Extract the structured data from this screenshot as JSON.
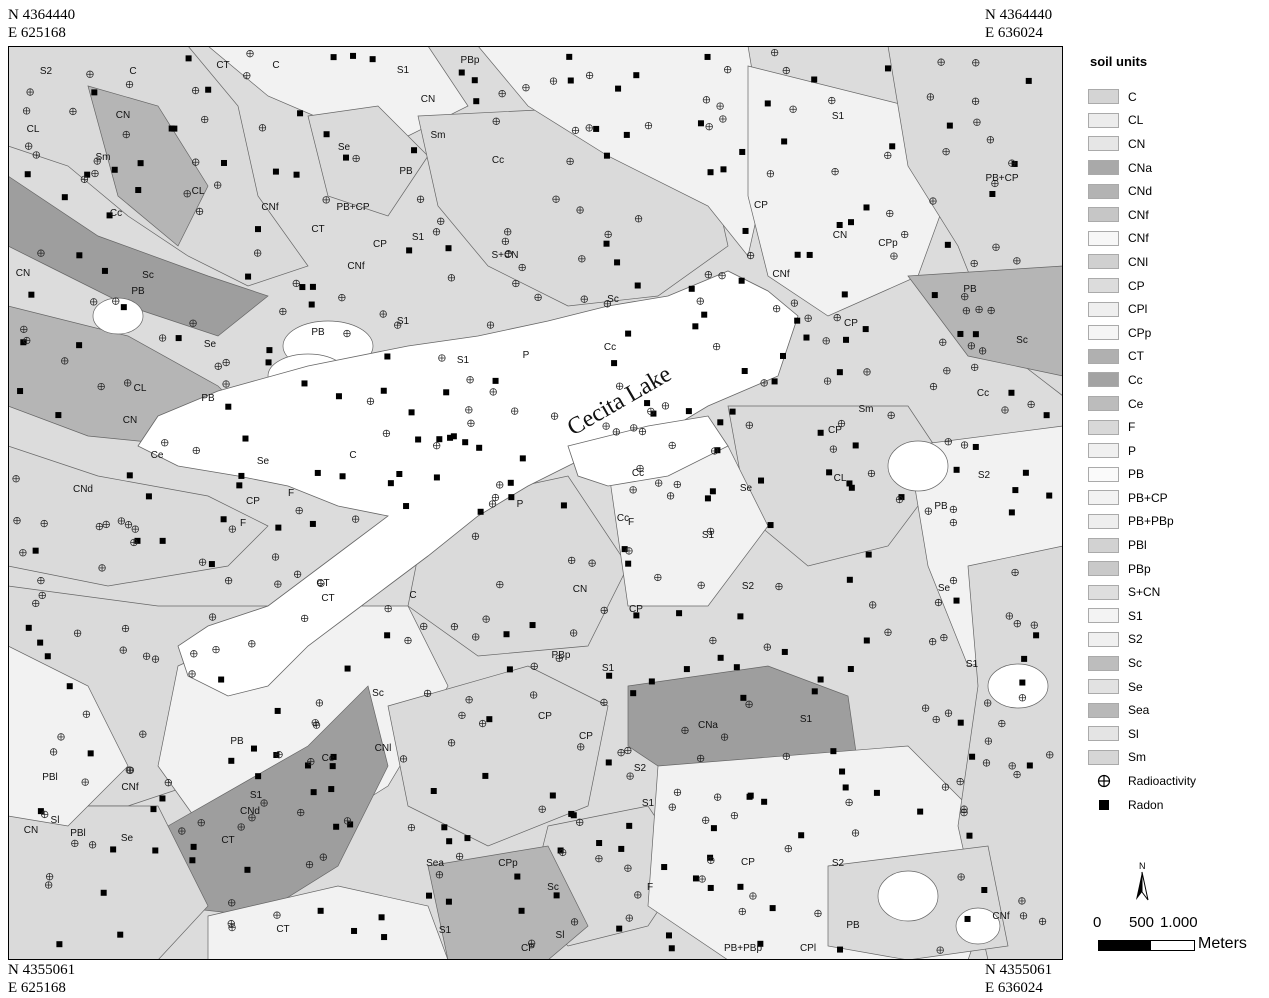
{
  "corners": {
    "top_left": [
      "N 4364440",
      "E 625168"
    ],
    "top_right": [
      "N 4364440",
      "E 636024"
    ],
    "bottom_left": [
      "N 4355061",
      "E 625168"
    ],
    "bottom_right": [
      "N 4355061",
      "E 636024"
    ]
  },
  "map": {
    "lake_label": "Cecita Lake",
    "zone_labels": [
      "S2",
      "C",
      "CT",
      "C",
      "S1",
      "PBp",
      "S1",
      "CL",
      "CN",
      "Se",
      "CN",
      "Sm",
      "Cc",
      "PB+CP",
      "Sm",
      "PB",
      "CL",
      "CNf",
      "PB+CP",
      "CT",
      "CNf",
      "CP",
      "S1",
      "S+CN",
      "CP",
      "Cc",
      "CN",
      "CPp",
      "CNf",
      "CN",
      "Sc",
      "PB",
      "Sc",
      "PB",
      "PB",
      "Se",
      "CP",
      "S1",
      "Cc",
      "Sc",
      "P",
      "S1",
      "CP",
      "CL",
      "CN",
      "Ce",
      "CNd",
      "Se",
      "C",
      "F",
      "PB",
      "F",
      "CP",
      "CT",
      "Sm",
      "Cc",
      "Se",
      "CL",
      "PB",
      "P",
      "S2",
      "Cc",
      "F",
      "Cc",
      "C",
      "CT",
      "CN",
      "PBp",
      "S1",
      "Sl",
      "CP",
      "Sc",
      "CNl",
      "Ce",
      "CNd",
      "CT",
      "S1",
      "PB",
      "S2",
      "CP",
      "CNa",
      "Sea",
      "Sc",
      "CPp",
      "Sl",
      "CP",
      "F",
      "PB+PBp",
      "CPl",
      "PBl",
      "CNf",
      "CN",
      "PBl",
      "CT",
      "S1",
      "Se",
      "S1",
      "CP",
      "PB",
      "S2",
      "Se",
      "S1",
      "CP",
      "CNf",
      "S2",
      "S1",
      "S1"
    ],
    "colors": {
      "light": "#f2f2f2",
      "mid": "#dadada",
      "dark": "#b5b5b5",
      "darker": "#9e9e9e",
      "white": "#ffffff",
      "border": "#666666"
    }
  },
  "legend": {
    "title": "soil units",
    "units": [
      {
        "label": "C",
        "color": "#d4d4d4"
      },
      {
        "label": "CL",
        "color": "#ececec"
      },
      {
        "label": "CN",
        "color": "#e6e6e6"
      },
      {
        "label": "CNa",
        "color": "#a9a9a9"
      },
      {
        "label": "CNd",
        "color": "#b3b3b3"
      },
      {
        "label": "CNf",
        "color": "#c6c6c6"
      },
      {
        "label": "CNf",
        "color": "#f7f7f7"
      },
      {
        "label": "CNl",
        "color": "#d0d0d0"
      },
      {
        "label": "CP",
        "color": "#dcdcdc"
      },
      {
        "label": "CPl",
        "color": "#efefef"
      },
      {
        "label": "CPp",
        "color": "#f5f5f5"
      },
      {
        "label": "CT",
        "color": "#b0b0b0"
      },
      {
        "label": "Cc",
        "color": "#a3a3a3"
      },
      {
        "label": "Ce",
        "color": "#bcbcbc"
      },
      {
        "label": "F",
        "color": "#d8d8d8"
      },
      {
        "label": "P",
        "color": "#f0f0f0"
      },
      {
        "label": "PB",
        "color": "#fafafa"
      },
      {
        "label": "PB+CP",
        "color": "#f2f2f2"
      },
      {
        "label": "PB+PBp",
        "color": "#eeeeee"
      },
      {
        "label": "PBl",
        "color": "#d2d2d2"
      },
      {
        "label": "PBp",
        "color": "#c9c9c9"
      },
      {
        "label": "S+CN",
        "color": "#dedede"
      },
      {
        "label": "S1",
        "color": "#f3f3f3"
      },
      {
        "label": "S2",
        "color": "#f0f0f0"
      },
      {
        "label": "Sc",
        "color": "#bdbdbd"
      },
      {
        "label": "Se",
        "color": "#e2e2e2"
      },
      {
        "label": "Sea",
        "color": "#b8b8b8"
      },
      {
        "label": "Sl",
        "color": "#e4e4e4"
      },
      {
        "label": "Sm",
        "color": "#d6d6d6"
      }
    ],
    "symbols": [
      {
        "label": "Radioactivity",
        "icon": "circle-cross-icon"
      },
      {
        "label": "Radon",
        "icon": "filled-square-icon"
      }
    ]
  },
  "north_arrow": {
    "label": "N"
  },
  "scale_bar": {
    "ticks": [
      "0",
      "500",
      "1.000"
    ],
    "unit": "Meters"
  }
}
